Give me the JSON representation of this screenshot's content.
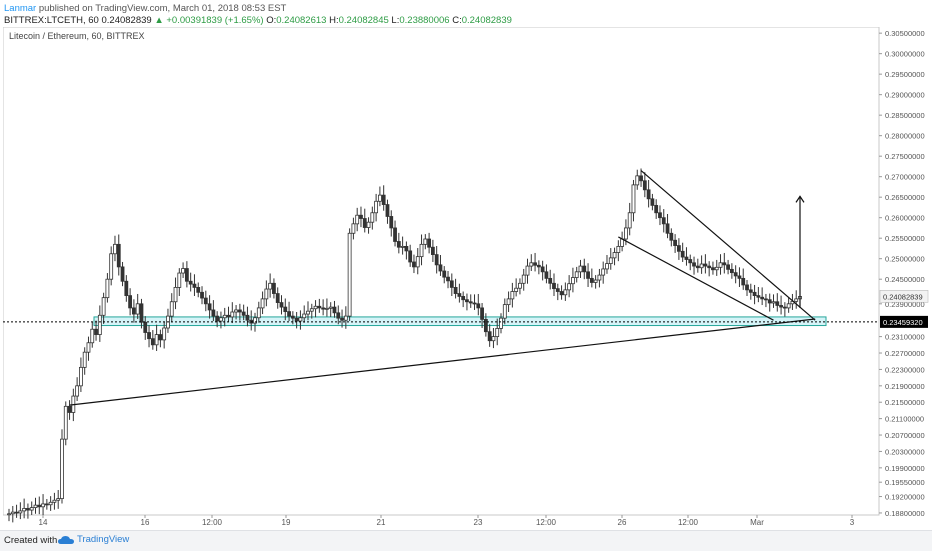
{
  "header": {
    "author": "Lanmar",
    "published_text": "published on TradingView.com, March 01, 2018 08:53 EST"
  },
  "ohlc": {
    "symbol": "BITTREX:LTCETH, 60",
    "last": "0.24082839",
    "change": "▲ +0.00391839 (+1.65%)",
    "o_label": "O:",
    "o": "0.24082613",
    "h_label": "H:",
    "h": "0.24082845",
    "l_label": "L:",
    "l": "0.23880006",
    "c_label": "C:",
    "c": "0.24082839"
  },
  "colors": {
    "up": "#2e9c45",
    "candle": "#333333",
    "zone_fill": "#b2ebf2",
    "zone_stroke": "#26a69a",
    "line": "#111111",
    "axis_text": "#555555",
    "last_price_bg": "#f2f2f2",
    "marker_bg": "#000000"
  },
  "footer": {
    "created_with": "Created with",
    "brand": "TradingView"
  },
  "chart_data": {
    "type": "candlestick",
    "title": "Litecoin / Ethereum, 60, BITTREX",
    "xlabel": "",
    "ylabel": "",
    "x_ticks": [
      "14",
      "16",
      "12:00",
      "19",
      "21",
      "23",
      "12:00",
      "26",
      "12:00",
      "Mar",
      "3"
    ],
    "y_ticks": [
      "0.30500000",
      "0.30000000",
      "0.29500000",
      "0.29000000",
      "0.28500000",
      "0.28000000",
      "0.27500000",
      "0.27000000",
      "0.26500000",
      "0.26000000",
      "0.25500000",
      "0.25000000",
      "0.24500000",
      "0.23900000",
      "0.23100000",
      "0.22700000",
      "0.22300000",
      "0.21900000",
      "0.21500000",
      "0.21100000",
      "0.20700000",
      "0.20300000",
      "0.19900000",
      "0.19550000",
      "0.19200000",
      "0.18800000"
    ],
    "ylim": [
      0.1875,
      0.3065
    ],
    "scale": "linear",
    "grid": false,
    "last_price_label": "0.24082839",
    "marker_price_label": "0.23459320",
    "series": [
      {
        "values": [
          0.1878,
          0.1882,
          0.188,
          0.1885,
          0.1891,
          0.1887,
          0.1893,
          0.1899,
          0.1895,
          0.1902,
          0.19,
          0.1906,
          0.1911,
          0.1915,
          0.206,
          0.214,
          0.2125,
          0.2165,
          0.219,
          0.2235,
          0.2272,
          0.2295,
          0.2328,
          0.2315,
          0.2362,
          0.2405,
          0.245,
          0.2512,
          0.2535,
          0.248,
          0.2445,
          0.241,
          0.238,
          0.2365,
          0.239,
          0.2345,
          0.232,
          0.2305,
          0.229,
          0.2315,
          0.2302,
          0.2331,
          0.236,
          0.2395,
          0.243,
          0.2465,
          0.2476,
          0.2445,
          0.2438,
          0.243,
          0.2418,
          0.2404,
          0.239,
          0.2375,
          0.236,
          0.2348,
          0.2356,
          0.2362,
          0.2358,
          0.237,
          0.2375,
          0.237,
          0.2362,
          0.235,
          0.2343,
          0.2356,
          0.238,
          0.2402,
          0.2426,
          0.244,
          0.2415,
          0.2393,
          0.2382,
          0.2371,
          0.236,
          0.2355,
          0.2348,
          0.2356,
          0.2365,
          0.2372,
          0.2378,
          0.2384,
          0.238,
          0.2377,
          0.2379,
          0.2382,
          0.2368,
          0.2355,
          0.235,
          0.236,
          0.2562,
          0.2585,
          0.2606,
          0.2598,
          0.2576,
          0.2589,
          0.2612,
          0.264,
          0.2655,
          0.2632,
          0.2603,
          0.2575,
          0.2542,
          0.2528,
          0.253,
          0.2519,
          0.2492,
          0.248,
          0.2505,
          0.2535,
          0.2548,
          0.2528,
          0.251,
          0.2485,
          0.247,
          0.2455,
          0.2446,
          0.243,
          0.2415,
          0.2408,
          0.24,
          0.2395,
          0.2392,
          0.239,
          0.238,
          0.2352,
          0.2322,
          0.23,
          0.231,
          0.233,
          0.2355,
          0.2388,
          0.2402,
          0.242,
          0.2428,
          0.244,
          0.246,
          0.2482,
          0.249,
          0.2484,
          0.248,
          0.2468,
          0.2452,
          0.244,
          0.2427,
          0.242,
          0.2412,
          0.2424,
          0.2439,
          0.2454,
          0.2468,
          0.2482,
          0.2468,
          0.2452,
          0.2442,
          0.2448,
          0.246,
          0.2475,
          0.2488,
          0.2502,
          0.2515,
          0.253,
          0.2548,
          0.2575,
          0.2612,
          0.268,
          0.2702,
          0.269,
          0.2668,
          0.2646,
          0.263,
          0.2612,
          0.26,
          0.2585,
          0.2562,
          0.2545,
          0.2532,
          0.2518,
          0.2504,
          0.2498,
          0.249,
          0.2482,
          0.2478,
          0.2487,
          0.2482,
          0.2478,
          0.2473,
          0.2479,
          0.249,
          0.2485,
          0.2474,
          0.2466,
          0.2458,
          0.2452,
          0.2436,
          0.2424,
          0.2418,
          0.241,
          0.2406,
          0.2402,
          0.24,
          0.2392,
          0.2395,
          0.2386,
          0.2382,
          0.238,
          0.239,
          0.2396,
          0.2402,
          0.2408
        ]
      }
    ],
    "zones": [
      {
        "type": "support",
        "from": 0.2337,
        "to": 0.2358
      }
    ],
    "trendlines": [
      {
        "label": "rising support",
        "from": {
          "i": 16,
          "y": 0.2143
        },
        "to": {
          "i": 213,
          "y": 0.2353
        }
      },
      {
        "label": "falling upper",
        "from": {
          "i": 167,
          "y": 0.2715
        },
        "to": {
          "i": 213,
          "y": 0.235
        }
      },
      {
        "label": "falling lower",
        "from": {
          "i": 161,
          "y": 0.2553
        },
        "to": {
          "i": 202,
          "y": 0.235
        }
      }
    ],
    "arrow": {
      "i": 209,
      "from": 0.238,
      "to": 0.2652
    }
  }
}
